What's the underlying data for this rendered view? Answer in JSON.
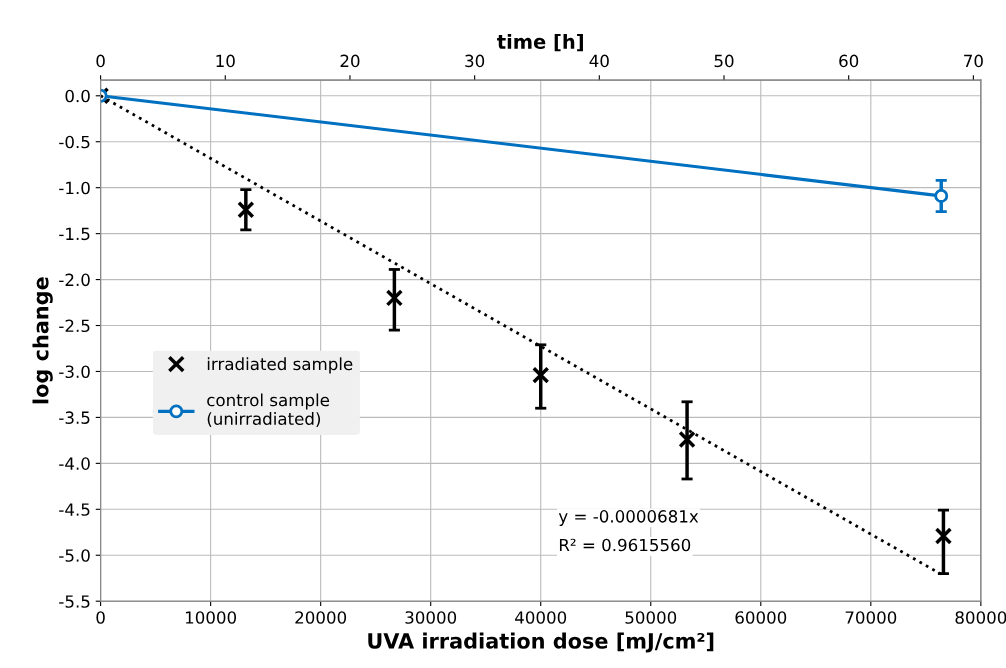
{
  "chart_data": {
    "type": "scatter",
    "xlabel": "UVA irradiation dose [mJ/cm²]",
    "ylabel": "log change",
    "x2label": "time [h]",
    "xlim": [
      0,
      80000
    ],
    "xticks": [
      0,
      10000,
      20000,
      30000,
      40000,
      50000,
      60000,
      70000,
      80000
    ],
    "x2lim": [
      0,
      70.6
    ],
    "x2ticks": [
      0,
      10,
      20,
      30,
      40,
      50,
      60,
      70
    ],
    "ylim": [
      -5.5,
      0.17
    ],
    "yticks": [
      {
        "value": 0,
        "label": "0.0"
      },
      -0.5,
      {
        "value": -1,
        "label": "-1.0"
      },
      -1.5,
      {
        "value": -2,
        "label": "-2.0"
      },
      -2.5,
      {
        "value": -3,
        "label": "-3.0"
      },
      -3.5,
      {
        "value": -4,
        "label": "-4.0"
      },
      -4.5,
      {
        "value": -5,
        "label": "-5.0"
      },
      -5.5
    ],
    "grid": true,
    "legend": "center left",
    "series": [
      {
        "name": "irradiated sample",
        "marker": "cross",
        "color": "#000000",
        "x": [
          0,
          13200,
          26700,
          40000,
          53300,
          76600
        ],
        "values": [
          0,
          -1.24,
          -2.2,
          -3.04,
          -3.74,
          -4.79
        ],
        "errors": [
          null,
          0.22,
          [
            -2.55,
            -1.89
          ],
          [
            -3.4,
            -2.71
          ],
          [
            -4.17,
            -3.33
          ],
          [
            -5.2,
            -4.51
          ]
        ]
      },
      {
        "name": "control sample\n(unirradiated)",
        "type": "line",
        "marker": "circle",
        "line_style": "solid",
        "color": "#0070c0",
        "x": [
          0,
          76400
        ],
        "values": [
          0,
          -1.09
        ],
        "errors": [
          null,
          0.17
        ]
      },
      {
        "type": "line",
        "marker": "none",
        "line_style": "dotted",
        "color": "#000000",
        "x": [
          0,
          76600
        ],
        "values": [
          0,
          -5.22
        ]
      }
    ],
    "annotations": [
      "y = -0.0000681x",
      "R² = 0.9615560"
    ]
  }
}
